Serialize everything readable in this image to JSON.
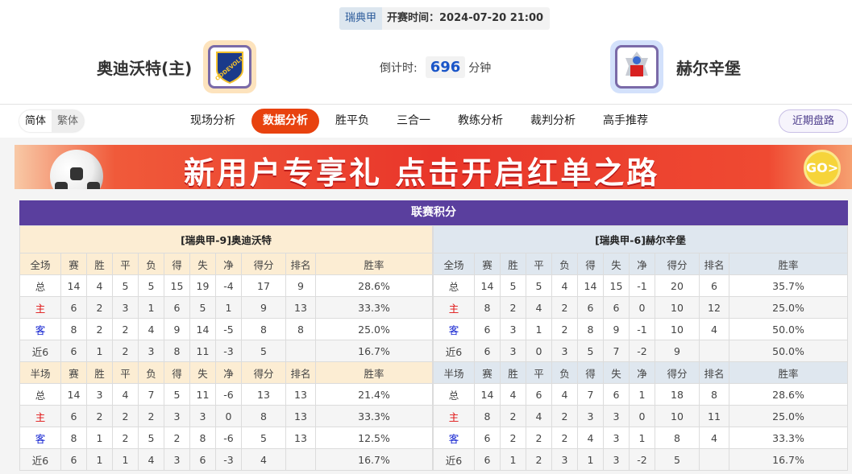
{
  "header": {
    "league": "瑞典甲",
    "kickoff": "开赛时间：2024-07-20 21:00",
    "home_team": "奥迪沃特(主)",
    "away_team": "赫尔辛堡",
    "countdown_label": "倒计时:",
    "countdown_value": "696",
    "countdown_unit": "分钟"
  },
  "nav": {
    "lang": [
      "简体",
      "繁体"
    ],
    "tabs": [
      "现场分析",
      "数据分析",
      "胜平负",
      "三合一",
      "教练分析",
      "裁判分析",
      "高手推荐"
    ],
    "active_tab": "数据分析",
    "recent_button": "近期盘路"
  },
  "banner": {
    "text": "新用户专享礼 点击开启红单之路",
    "go": "GO>"
  },
  "colors": {
    "accent": "#e8420f",
    "panel_header": "#5a3f9e",
    "home_label": "#e01010",
    "away_label": "#1020d0"
  },
  "standings": {
    "title": "联赛积分",
    "columns_full": [
      "全场",
      "赛",
      "胜",
      "平",
      "负",
      "得",
      "失",
      "净",
      "得分",
      "排名",
      "胜率"
    ],
    "columns_half": [
      "半场",
      "赛",
      "胜",
      "平",
      "负",
      "得",
      "失",
      "净",
      "得分",
      "排名",
      "胜率"
    ],
    "teams": [
      {
        "title": "[瑞典甲-9]奥迪沃特",
        "full": [
          [
            "总",
            "14",
            "4",
            "5",
            "5",
            "15",
            "19",
            "-4",
            "17",
            "9",
            "28.6%"
          ],
          [
            "主",
            "6",
            "2",
            "3",
            "1",
            "6",
            "5",
            "1",
            "9",
            "13",
            "33.3%"
          ],
          [
            "客",
            "8",
            "2",
            "2",
            "4",
            "9",
            "14",
            "-5",
            "8",
            "8",
            "25.0%"
          ],
          [
            "近6",
            "6",
            "1",
            "2",
            "3",
            "8",
            "11",
            "-3",
            "5",
            "",
            "16.7%"
          ]
        ],
        "half": [
          [
            "总",
            "14",
            "3",
            "4",
            "7",
            "5",
            "11",
            "-6",
            "13",
            "13",
            "21.4%"
          ],
          [
            "主",
            "6",
            "2",
            "2",
            "2",
            "3",
            "3",
            "0",
            "8",
            "13",
            "33.3%"
          ],
          [
            "客",
            "8",
            "1",
            "2",
            "5",
            "2",
            "8",
            "-6",
            "5",
            "13",
            "12.5%"
          ],
          [
            "近6",
            "6",
            "1",
            "1",
            "4",
            "3",
            "6",
            "-3",
            "4",
            "",
            "16.7%"
          ]
        ]
      },
      {
        "title": "[瑞典甲-6]赫尔辛堡",
        "full": [
          [
            "总",
            "14",
            "5",
            "5",
            "4",
            "14",
            "15",
            "-1",
            "20",
            "6",
            "35.7%"
          ],
          [
            "主",
            "8",
            "2",
            "4",
            "2",
            "6",
            "6",
            "0",
            "10",
            "12",
            "25.0%"
          ],
          [
            "客",
            "6",
            "3",
            "1",
            "2",
            "8",
            "9",
            "-1",
            "10",
            "4",
            "50.0%"
          ],
          [
            "近6",
            "6",
            "3",
            "0",
            "3",
            "5",
            "7",
            "-2",
            "9",
            "",
            "50.0%"
          ]
        ],
        "half": [
          [
            "总",
            "14",
            "4",
            "6",
            "4",
            "7",
            "6",
            "1",
            "18",
            "8",
            "28.6%"
          ],
          [
            "主",
            "8",
            "2",
            "4",
            "2",
            "3",
            "3",
            "0",
            "10",
            "11",
            "25.0%"
          ],
          [
            "客",
            "6",
            "2",
            "2",
            "2",
            "4",
            "3",
            "1",
            "8",
            "4",
            "33.3%"
          ],
          [
            "近6",
            "6",
            "1",
            "2",
            "3",
            "1",
            "3",
            "-2",
            "5",
            "",
            "16.7%"
          ]
        ]
      }
    ]
  }
}
